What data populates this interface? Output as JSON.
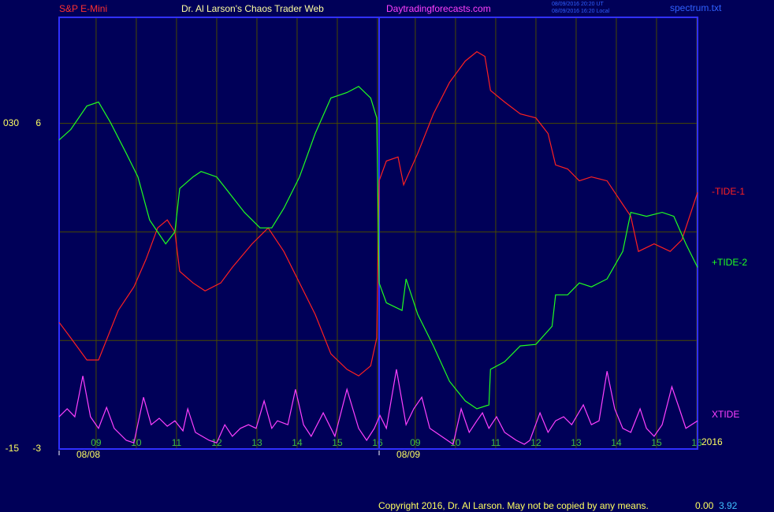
{
  "chart_data": {
    "type": "line",
    "title": "Dr. Al Larson's Chaos Trader Web",
    "subtitle": "S&P E-Mini",
    "site": "Daytradingforecasts.com",
    "timestamps": [
      "08/09/2016 20:20 UT",
      "08/09/2016 16:20 Local"
    ],
    "file": "spectrum.txt",
    "year_label": "2016",
    "copyright": "Copyright 2016, Dr. Al Larson. May not be copied by any means.",
    "readouts": [
      "0.00",
      "3.92"
    ],
    "grid": true,
    "ylim": [
      -3,
      8.93
    ],
    "yticks": [
      6,
      -3
    ],
    "ygrid": [
      6,
      3,
      0
    ],
    "y2lim": [
      -15,
      44.7
    ],
    "y2ticks": [
      {
        "value": 30,
        "label": "030"
      },
      -15
    ],
    "xlim": [
      8.08,
      23.96
    ],
    "xticks": [
      {
        "value": 9,
        "label": "09"
      },
      10,
      11,
      12,
      13,
      14,
      15,
      16,
      {
        "value": 16.94,
        "label": "09"
      },
      {
        "value": 17.94,
        "label": "10"
      },
      {
        "value": 18.94,
        "label": "11"
      },
      {
        "value": 19.94,
        "label": "12"
      },
      {
        "value": 20.94,
        "label": "13"
      },
      {
        "value": 21.94,
        "label": "14"
      },
      {
        "value": 22.94,
        "label": "15"
      },
      {
        "value": 23.94,
        "label": "16"
      }
    ],
    "date_ticks": [
      {
        "value": 8.08,
        "label": "08/08"
      },
      {
        "value": 16.04,
        "label": "08/09"
      }
    ],
    "series": [
      {
        "name": "-TIDE-1",
        "color": "#ff2020",
        "x": [
          8.08,
          8.37,
          8.77,
          9.06,
          9.55,
          9.94,
          10.24,
          10.53,
          10.77,
          10.96,
          11.08,
          11.41,
          11.71,
          12.1,
          12.39,
          12.88,
          13.28,
          13.67,
          14.06,
          14.45,
          14.84,
          15.24,
          15.53,
          15.83,
          15.98,
          16.04,
          16.22,
          16.51,
          16.65,
          17.0,
          17.39,
          17.79,
          18.18,
          18.47,
          18.67,
          18.81,
          19.16,
          19.55,
          19.94,
          20.24,
          20.43,
          20.73,
          21.02,
          21.32,
          21.71,
          22.1,
          22.3,
          22.49,
          22.88,
          23.28,
          23.57,
          23.96
        ],
        "values": [
          0.5,
          0.07,
          -0.54,
          -0.54,
          0.83,
          1.48,
          2.24,
          3.11,
          3.33,
          3.0,
          1.91,
          1.59,
          1.37,
          1.59,
          2.02,
          2.67,
          3.11,
          2.46,
          1.59,
          0.72,
          -0.37,
          -0.8,
          -0.98,
          -0.7,
          0.07,
          4.41,
          4.96,
          5.07,
          4.3,
          5.17,
          6.26,
          7.13,
          7.72,
          7.98,
          7.85,
          6.91,
          6.59,
          6.26,
          6.15,
          5.72,
          4.85,
          4.74,
          4.41,
          4.52,
          4.41,
          3.76,
          3.43,
          2.46,
          2.67,
          2.46,
          2.78,
          4.09
        ]
      },
      {
        "name": "+TIDE-2",
        "color": "#20ff20",
        "x": [
          8.08,
          8.37,
          8.77,
          9.06,
          9.35,
          9.75,
          10.04,
          10.33,
          10.73,
          10.96,
          11.08,
          11.41,
          11.61,
          12.0,
          12.3,
          12.69,
          13.08,
          13.37,
          13.67,
          14.06,
          14.45,
          14.84,
          15.24,
          15.53,
          15.83,
          15.98,
          16.04,
          16.22,
          16.61,
          16.71,
          17.0,
          17.39,
          17.79,
          18.18,
          18.47,
          18.77,
          18.81,
          19.16,
          19.55,
          19.94,
          20.34,
          20.43,
          20.73,
          21.02,
          21.32,
          21.71,
          22.1,
          22.3,
          22.69,
          23.08,
          23.37,
          23.67,
          23.96
        ],
        "values": [
          5.54,
          5.83,
          6.48,
          6.59,
          6.04,
          5.17,
          4.52,
          3.33,
          2.67,
          3.0,
          4.2,
          4.52,
          4.67,
          4.52,
          4.09,
          3.54,
          3.11,
          3.11,
          3.65,
          4.52,
          5.72,
          6.7,
          6.85,
          7.02,
          6.7,
          6.15,
          1.59,
          1.04,
          0.83,
          1.7,
          0.72,
          -0.15,
          -1.13,
          -1.67,
          -1.89,
          -1.78,
          -0.8,
          -0.59,
          -0.15,
          -0.11,
          0.39,
          1.26,
          1.26,
          1.59,
          1.48,
          1.7,
          2.46,
          3.54,
          3.43,
          3.54,
          3.43,
          2.67,
          2.02
        ]
      },
      {
        "name": "XTIDE",
        "color": "#ff40ff",
        "x": [
          8.08,
          8.28,
          8.47,
          8.67,
          8.86,
          9.06,
          9.26,
          9.45,
          9.75,
          9.94,
          10.18,
          10.37,
          10.57,
          10.77,
          10.96,
          11.16,
          11.28,
          11.47,
          11.81,
          12.0,
          12.2,
          12.39,
          12.59,
          12.79,
          12.98,
          13.18,
          13.37,
          13.51,
          13.77,
          13.96,
          14.16,
          14.35,
          14.65,
          14.94,
          15.24,
          15.53,
          15.73,
          15.92,
          16.06,
          16.22,
          16.47,
          16.71,
          16.9,
          17.1,
          17.3,
          17.59,
          17.88,
          18.08,
          18.28,
          18.47,
          18.61,
          18.77,
          18.96,
          19.16,
          19.45,
          19.65,
          19.79,
          20.04,
          20.24,
          20.43,
          20.63,
          20.83,
          21.12,
          21.32,
          21.51,
          21.71,
          21.9,
          22.1,
          22.3,
          22.53,
          22.69,
          22.88,
          23.08,
          23.32,
          23.51,
          23.67,
          23.96
        ],
        "values": [
          -2.11,
          -1.89,
          -2.11,
          -0.98,
          -2.11,
          -2.43,
          -1.85,
          -2.43,
          -2.76,
          -2.83,
          -1.57,
          -2.33,
          -2.15,
          -2.37,
          -2.22,
          -2.5,
          -1.89,
          -2.54,
          -2.76,
          -2.83,
          -2.33,
          -2.65,
          -2.43,
          -2.33,
          -2.43,
          -1.67,
          -2.43,
          -2.22,
          -2.33,
          -1.35,
          -2.33,
          -2.65,
          -2.0,
          -2.65,
          -1.35,
          -2.43,
          -2.76,
          -2.43,
          -2.07,
          -2.43,
          -0.8,
          -2.33,
          -1.89,
          -1.57,
          -2.43,
          -2.65,
          -2.87,
          -1.89,
          -2.54,
          -2.22,
          -2.0,
          -2.43,
          -2.11,
          -2.54,
          -2.76,
          -2.87,
          -2.76,
          -2.0,
          -2.54,
          -2.22,
          -2.11,
          -2.33,
          -1.78,
          -2.33,
          -2.22,
          -0.85,
          -1.89,
          -2.43,
          -2.54,
          -1.89,
          -2.43,
          -2.65,
          -2.33,
          -1.28,
          -1.89,
          -2.43,
          -2.22
        ]
      }
    ]
  }
}
